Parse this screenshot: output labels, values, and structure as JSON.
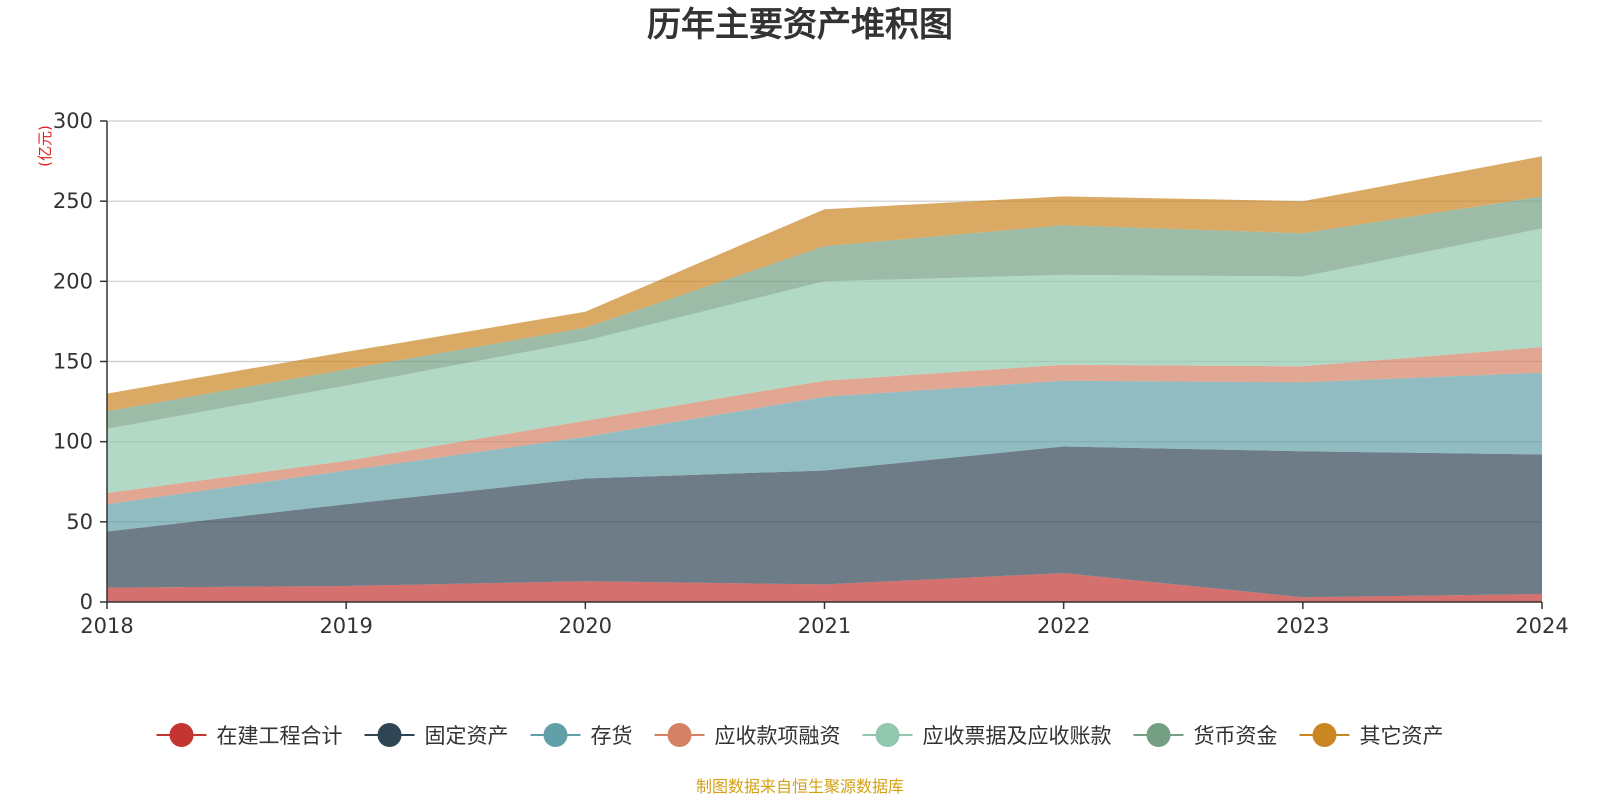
{
  "chart_data": {
    "type": "area",
    "stacked": true,
    "title": "历年主要资产堆积图",
    "unit_label": "(亿元)",
    "x": [
      "2018",
      "2019",
      "2020",
      "2021",
      "2022",
      "2023",
      "2024"
    ],
    "ylim": [
      0,
      300
    ],
    "yticks": [
      0,
      50,
      100,
      150,
      200,
      250,
      300
    ],
    "grid": true,
    "legend_position": "bottom",
    "series": [
      {
        "name": "在建工程合计",
        "color": "#c23531",
        "values": [
          9,
          10,
          13,
          11,
          18,
          3,
          5
        ]
      },
      {
        "name": "固定资产",
        "color": "#2f4554",
        "values": [
          35,
          51,
          64,
          71,
          79,
          91,
          87
        ]
      },
      {
        "name": "存货",
        "color": "#61a0a8",
        "values": [
          17,
          21,
          26,
          46,
          41,
          43,
          51
        ]
      },
      {
        "name": "应收款项融资",
        "color": "#d48265",
        "values": [
          7,
          6,
          10,
          10,
          10,
          10,
          16
        ]
      },
      {
        "name": "应收票据及应收账款",
        "color": "#91c7ae",
        "values": [
          40,
          47,
          50,
          62,
          56,
          56,
          74
        ]
      },
      {
        "name": "货币资金",
        "color": "#749f83",
        "values": [
          11,
          10,
          8,
          22,
          31,
          27,
          20
        ]
      },
      {
        "name": "其它资产",
        "color": "#ca8622",
        "values": [
          11,
          11,
          10,
          23,
          18,
          20,
          25
        ]
      }
    ],
    "source_note": "制图数据来自恒生聚源数据库"
  }
}
